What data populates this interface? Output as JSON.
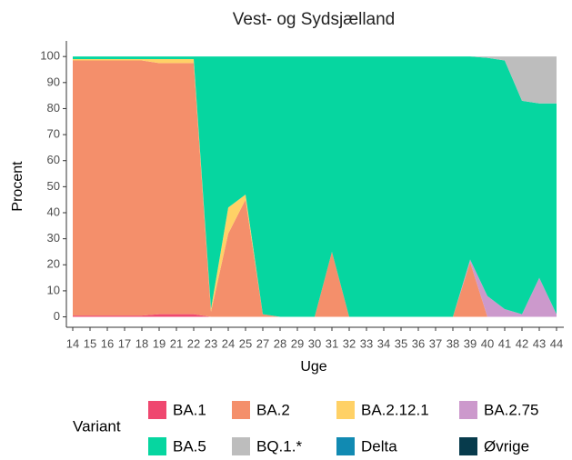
{
  "chart_data": {
    "type": "area",
    "stacked": true,
    "title": "Vest- og Sydsjælland",
    "x_label": "Uge",
    "y_label": "Procent",
    "legend_title": "Variant",
    "categories": [
      "14",
      "15",
      "16",
      "17",
      "18",
      "19",
      "21",
      "22",
      "23",
      "24",
      "25",
      "27",
      "28",
      "29",
      "30",
      "31",
      "32",
      "33",
      "34",
      "35",
      "36",
      "37",
      "38",
      "39",
      "40",
      "41",
      "42",
      "43",
      "44"
    ],
    "series": [
      {
        "name": "BA.1",
        "color": "#ef476f",
        "values": [
          0.5,
          0.5,
          0.5,
          0.5,
          0.5,
          1,
          1,
          1,
          0,
          0,
          0,
          0,
          0,
          0,
          0,
          0,
          0,
          0,
          0,
          0,
          0,
          0,
          0,
          0,
          0,
          0,
          0,
          0,
          0
        ]
      },
      {
        "name": "BA.2",
        "color": "#f48f6b",
        "values": [
          98,
          98,
          98,
          98,
          98,
          96.5,
          96.5,
          96.5,
          2,
          32,
          45,
          1,
          0,
          0,
          0,
          25,
          0,
          0,
          0,
          0,
          0,
          0,
          0,
          21,
          0,
          0,
          0,
          0,
          0
        ]
      },
      {
        "name": "BA.2.12.1",
        "color": "#ffd166",
        "values": [
          0.5,
          0.5,
          0.5,
          0.5,
          0.5,
          1.5,
          1.5,
          1.5,
          1,
          10,
          2,
          0,
          0,
          0,
          0,
          0,
          0,
          0,
          0,
          0,
          0,
          0,
          0,
          0,
          0,
          0,
          0,
          0,
          0
        ]
      },
      {
        "name": "BA.2.75",
        "color": "#cc99cc",
        "values": [
          0,
          0,
          0,
          0,
          0,
          0,
          0,
          0,
          0,
          0,
          0,
          0,
          0,
          0,
          0,
          0,
          0,
          0,
          0,
          0,
          0,
          0,
          0,
          1,
          8,
          3,
          1,
          15,
          1
        ]
      },
      {
        "name": "BA.5",
        "color": "#06d6a0",
        "values": [
          1,
          1,
          1,
          1,
          1,
          1,
          1,
          1,
          97,
          58,
          53,
          99,
          100,
          100,
          100,
          75,
          100,
          100,
          100,
          100,
          100,
          100,
          100,
          78,
          91.5,
          95.5,
          82,
          67,
          81
        ]
      },
      {
        "name": "BQ.1.*",
        "color": "#bdbdbd",
        "values": [
          0,
          0,
          0,
          0,
          0,
          0,
          0,
          0,
          0,
          0,
          0,
          0,
          0,
          0,
          0,
          0,
          0,
          0,
          0,
          0,
          0,
          0,
          0,
          0,
          0.5,
          1.5,
          17,
          18,
          18
        ]
      },
      {
        "name": "Delta",
        "color": "#118ab2",
        "values": [
          0,
          0,
          0,
          0,
          0,
          0,
          0,
          0,
          0,
          0,
          0,
          0,
          0,
          0,
          0,
          0,
          0,
          0,
          0,
          0,
          0,
          0,
          0,
          0,
          0,
          0,
          0,
          0,
          0
        ]
      },
      {
        "name": "Øvrige",
        "color": "#073b4c",
        "values": [
          0,
          0,
          0,
          0,
          0,
          0,
          0,
          0,
          0,
          0,
          0,
          0,
          0,
          0,
          0,
          0,
          0,
          0,
          0,
          0,
          0,
          0,
          0,
          0,
          0,
          0,
          0,
          0,
          0
        ]
      }
    ],
    "ylim": [
      -4,
      106
    ],
    "yticks": [
      0,
      10,
      20,
      30,
      40,
      50,
      60,
      70,
      80,
      90,
      100
    ],
    "grid": false
  }
}
